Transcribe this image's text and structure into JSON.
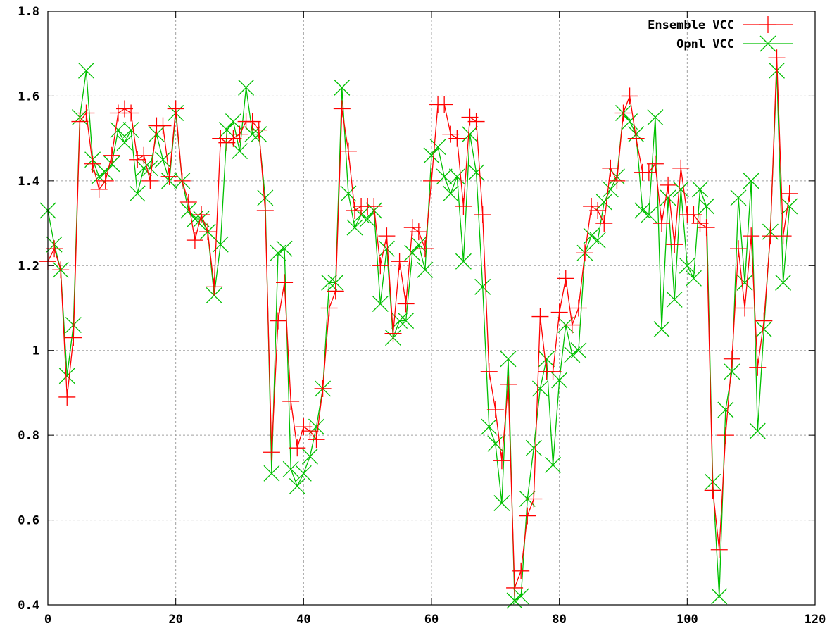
{
  "chart_data": {
    "type": "line",
    "title": "",
    "xlabel": "",
    "ylabel": "",
    "xlim": [
      0,
      120
    ],
    "ylim": [
      0.4,
      1.8
    ],
    "grid": true,
    "legend_position": "top-right",
    "x_ticks": [
      "0",
      "20",
      "40",
      "60",
      "80",
      "100",
      "120"
    ],
    "y_ticks": [
      "0.4",
      "0.6",
      "0.8",
      "1",
      "1.2",
      "1.4",
      "1.6",
      "1.8"
    ],
    "series": [
      {
        "name": "Ensemble VCC",
        "color": "#ff0000",
        "marker": "plus",
        "x": [
          0,
          1,
          2,
          3,
          4,
          5,
          6,
          7,
          8,
          9,
          10,
          11,
          12,
          13,
          14,
          15,
          16,
          17,
          18,
          19,
          20,
          21,
          22,
          23,
          24,
          25,
          26,
          27,
          28,
          29,
          30,
          31,
          32,
          33,
          34,
          35,
          36,
          37,
          38,
          39,
          40,
          41,
          42,
          43,
          44,
          45,
          46,
          47,
          48,
          49,
          50,
          51,
          52,
          53,
          54,
          55,
          56,
          57,
          58,
          59,
          60,
          61,
          62,
          63,
          64,
          65,
          66,
          67,
          68,
          69,
          70,
          71,
          72,
          73,
          74,
          75,
          76,
          77,
          78,
          79,
          80,
          81,
          82,
          83,
          84,
          85,
          86,
          87,
          88,
          89,
          90,
          91,
          92,
          93,
          94,
          95,
          96,
          97,
          98,
          99,
          100,
          101,
          102,
          103,
          104,
          105,
          106,
          107,
          108,
          109,
          110,
          111,
          112,
          113,
          114,
          115,
          116
        ],
        "y": [
          1.21,
          1.24,
          1.19,
          0.89,
          1.03,
          1.54,
          1.56,
          1.44,
          1.38,
          1.4,
          1.46,
          1.56,
          1.57,
          1.56,
          1.45,
          1.46,
          1.4,
          1.53,
          1.53,
          1.41,
          1.57,
          1.4,
          1.35,
          1.26,
          1.32,
          1.28,
          1.15,
          1.5,
          1.49,
          1.5,
          1.51,
          1.54,
          1.54,
          1.52,
          1.33,
          0.76,
          1.07,
          1.16,
          0.88,
          0.77,
          0.82,
          0.81,
          0.79,
          0.91,
          1.1,
          1.14,
          1.57,
          1.47,
          1.33,
          1.34,
          1.34,
          1.34,
          1.2,
          1.27,
          1.04,
          1.21,
          1.11,
          1.29,
          1.28,
          1.24,
          1.4,
          1.58,
          1.58,
          1.51,
          1.5,
          1.34,
          1.55,
          1.54,
          1.32,
          0.95,
          0.86,
          0.74,
          0.92,
          0.44,
          0.48,
          0.61,
          0.65,
          1.08,
          0.95,
          0.95,
          1.09,
          1.17,
          1.06,
          1.1,
          1.23,
          1.34,
          1.33,
          1.3,
          1.43,
          1.4,
          1.56,
          1.6,
          1.5,
          1.42,
          1.42,
          1.44,
          1.3,
          1.39,
          1.25,
          1.43,
          1.32,
          1.32,
          1.3,
          1.29,
          0.67,
          0.53,
          0.8,
          0.98,
          1.24,
          1.1,
          1.27,
          0.96,
          1.07,
          1.27,
          1.69,
          1.27,
          1.37
        ]
      },
      {
        "name": "Opnl VCC",
        "color": "#00c000",
        "marker": "cross",
        "x": [
          0,
          1,
          2,
          3,
          4,
          5,
          6,
          7,
          8,
          9,
          10,
          11,
          12,
          13,
          14,
          15,
          16,
          17,
          18,
          19,
          20,
          21,
          22,
          23,
          24,
          25,
          26,
          27,
          28,
          29,
          30,
          31,
          32,
          33,
          34,
          35,
          36,
          37,
          38,
          39,
          40,
          41,
          42,
          43,
          44,
          45,
          46,
          47,
          48,
          49,
          50,
          51,
          52,
          53,
          54,
          55,
          56,
          57,
          58,
          59,
          60,
          61,
          62,
          63,
          64,
          65,
          66,
          67,
          68,
          69,
          70,
          71,
          72,
          73,
          74,
          75,
          76,
          77,
          78,
          79,
          80,
          81,
          82,
          83,
          84,
          85,
          86,
          87,
          88,
          89,
          90,
          91,
          92,
          93,
          94,
          95,
          96,
          97,
          98,
          99,
          100,
          101,
          102,
          103,
          104,
          105,
          106,
          107,
          108,
          109,
          110,
          111,
          112,
          113,
          114,
          115,
          116
        ],
        "y": [
          1.33,
          1.25,
          1.19,
          0.94,
          1.06,
          1.55,
          1.66,
          1.45,
          1.41,
          1.42,
          1.44,
          1.52,
          1.49,
          1.52,
          1.37,
          1.43,
          1.43,
          1.51,
          1.45,
          1.4,
          1.56,
          1.4,
          1.33,
          1.31,
          1.31,
          1.28,
          1.13,
          1.25,
          1.52,
          1.54,
          1.47,
          1.62,
          1.51,
          1.51,
          1.36,
          0.71,
          1.23,
          1.24,
          0.72,
          0.68,
          0.71,
          0.75,
          0.82,
          0.91,
          1.16,
          1.16,
          1.62,
          1.37,
          1.29,
          1.32,
          1.31,
          1.33,
          1.11,
          1.24,
          1.03,
          1.07,
          1.07,
          1.23,
          1.25,
          1.19,
          1.46,
          1.48,
          1.41,
          1.37,
          1.41,
          1.21,
          1.51,
          1.42,
          1.15,
          0.82,
          0.78,
          0.64,
          0.98,
          0.41,
          0.42,
          0.65,
          0.77,
          0.91,
          0.98,
          0.73,
          0.93,
          1.06,
          0.99,
          1.0,
          1.23,
          1.27,
          1.26,
          1.35,
          1.38,
          1.41,
          1.56,
          1.54,
          1.51,
          1.33,
          1.32,
          1.55,
          1.05,
          1.36,
          1.12,
          1.38,
          1.2,
          1.17,
          1.38,
          1.34,
          0.69,
          0.42,
          0.86,
          0.95,
          1.36,
          1.16,
          1.4,
          0.81,
          1.05,
          1.28,
          1.66,
          1.16,
          1.34
        ]
      }
    ]
  }
}
